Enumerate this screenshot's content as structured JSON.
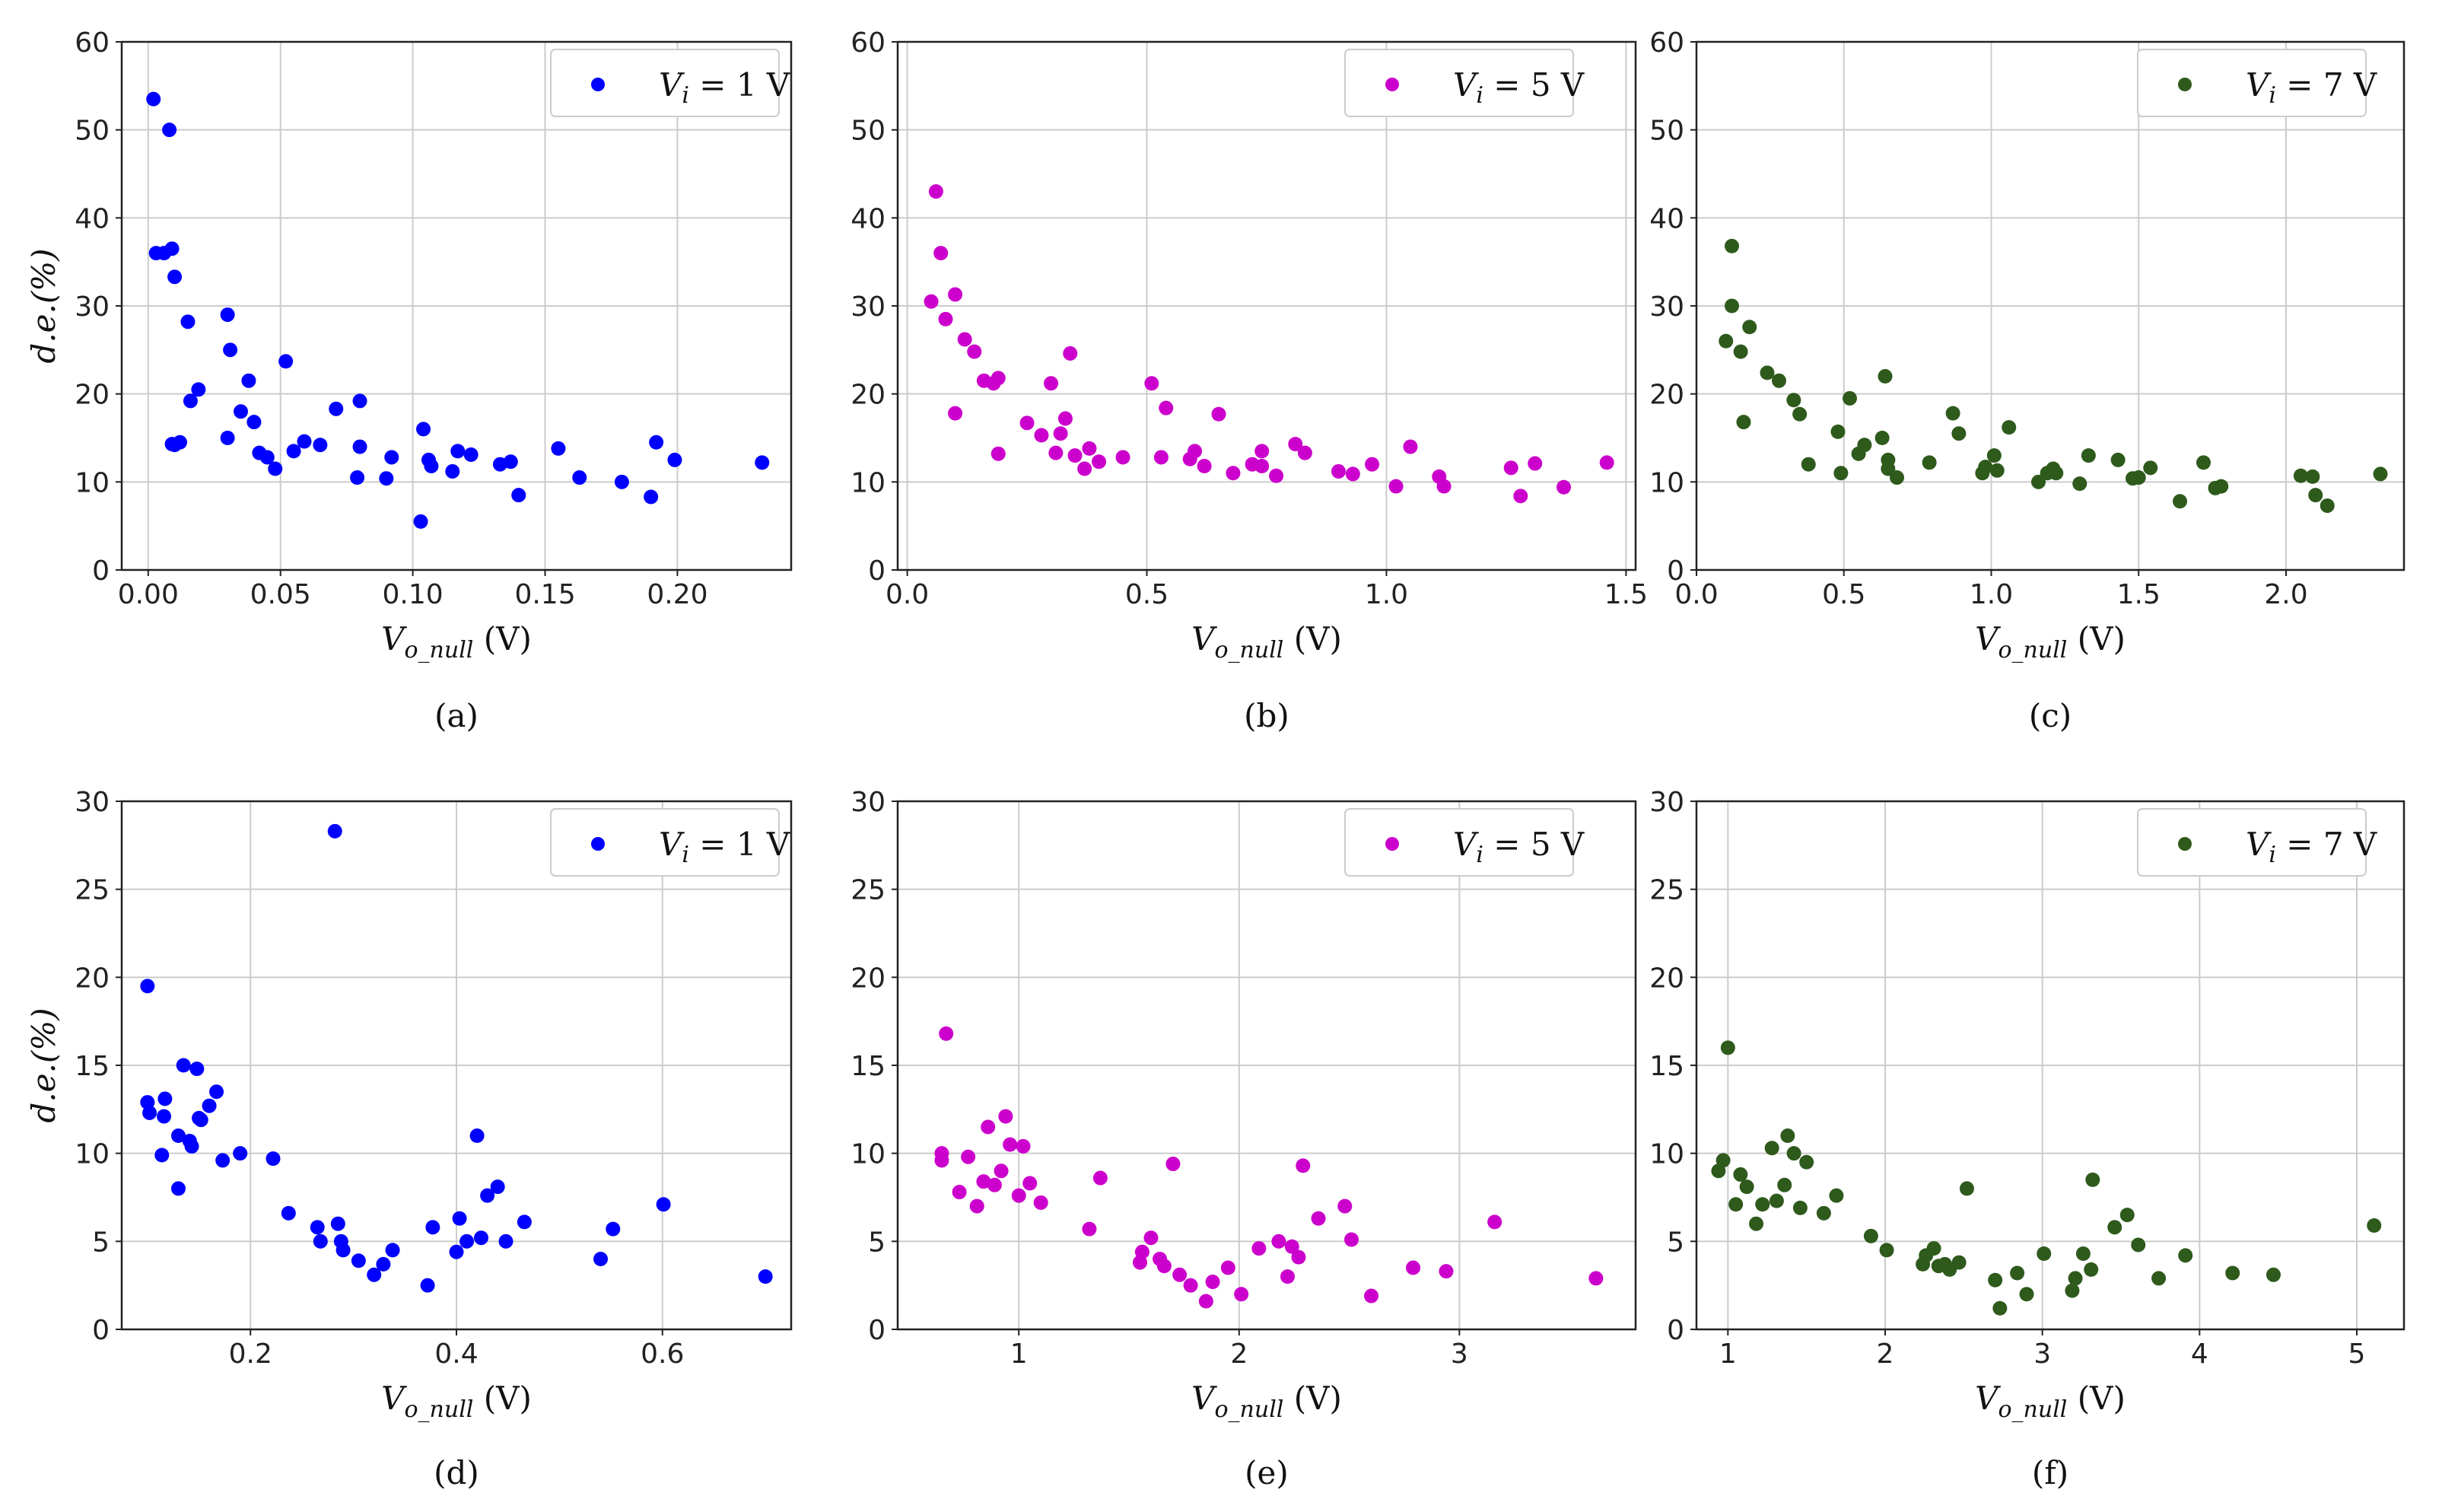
{
  "figure": {
    "ylabel": "d.e.(%)",
    "xlabel": "V",
    "xlabel_sub": "o_null",
    "xlabel_unit": " (V)"
  },
  "chart_data": [
    {
      "type": "scatter",
      "caption": "(a)",
      "color": "#0000ff",
      "legend": {
        "var": "V",
        "sub": "i",
        "value": " = 1 V",
        "position": "top-right"
      },
      "xlim": [
        -0.01,
        0.243
      ],
      "ylim": [
        0,
        60
      ],
      "xticks": [
        0.0,
        0.05,
        0.1,
        0.15,
        0.2
      ],
      "xtick_labels": [
        "0.00",
        "0.05",
        "0.10",
        "0.15",
        "0.20"
      ],
      "yticks": [
        0,
        10,
        20,
        30,
        40,
        50,
        60
      ],
      "ytick_labels": [
        "0",
        "10",
        "20",
        "30",
        "40",
        "50",
        "60"
      ],
      "x": [
        0.002,
        0.003,
        0.006,
        0.008,
        0.009,
        0.01,
        0.01,
        0.009,
        0.012,
        0.015,
        0.016,
        0.019,
        0.03,
        0.031,
        0.03,
        0.035,
        0.038,
        0.04,
        0.042,
        0.045,
        0.048,
        0.052,
        0.055,
        0.059,
        0.065,
        0.071,
        0.079,
        0.08,
        0.08,
        0.09,
        0.092,
        0.103,
        0.104,
        0.106,
        0.107,
        0.115,
        0.117,
        0.122,
        0.133,
        0.137,
        0.14,
        0.155,
        0.163,
        0.179,
        0.19,
        0.192,
        0.199,
        0.232
      ],
      "y": [
        53.5,
        36.0,
        36.0,
        50.0,
        36.5,
        33.3,
        14.2,
        14.3,
        14.5,
        28.2,
        19.2,
        20.5,
        29.0,
        25.0,
        15.0,
        18.0,
        21.5,
        16.8,
        13.3,
        12.8,
        11.5,
        23.7,
        13.5,
        14.6,
        14.2,
        18.3,
        10.5,
        14.0,
        19.2,
        10.4,
        12.8,
        5.5,
        16.0,
        12.5,
        11.8,
        11.2,
        13.5,
        13.1,
        12.0,
        12.3,
        8.5,
        13.8,
        10.5,
        10.0,
        8.3,
        14.5,
        12.5,
        12.2
      ]
    },
    {
      "type": "scatter",
      "caption": "(b)",
      "color": "#cc00cc",
      "legend": {
        "var": "V",
        "sub": "i",
        "value": " = 5 V",
        "position": "top-right"
      },
      "xlim": [
        -0.02,
        1.52
      ],
      "ylim": [
        0,
        60
      ],
      "xticks": [
        0.0,
        0.5,
        1.0,
        1.5
      ],
      "xtick_labels": [
        "0.0",
        "0.5",
        "1.0",
        "1.5"
      ],
      "yticks": [
        0,
        10,
        20,
        30,
        40,
        50,
        60
      ],
      "ytick_labels": [
        "0",
        "10",
        "20",
        "30",
        "40",
        "50",
        "60"
      ],
      "x": [
        0.05,
        0.06,
        0.07,
        0.08,
        0.1,
        0.1,
        0.12,
        0.14,
        0.16,
        0.18,
        0.19,
        0.19,
        0.25,
        0.28,
        0.3,
        0.31,
        0.32,
        0.33,
        0.34,
        0.35,
        0.37,
        0.38,
        0.4,
        0.45,
        0.51,
        0.53,
        0.54,
        0.59,
        0.6,
        0.62,
        0.65,
        0.68,
        0.72,
        0.74,
        0.74,
        0.77,
        0.81,
        0.83,
        0.9,
        0.93,
        0.97,
        1.02,
        1.05,
        1.11,
        1.12,
        1.26,
        1.28,
        1.31,
        1.37,
        1.46
      ],
      "y": [
        30.5,
        43.0,
        36.0,
        28.5,
        31.3,
        17.8,
        26.2,
        24.8,
        21.5,
        21.2,
        13.2,
        21.8,
        16.7,
        15.3,
        21.2,
        13.3,
        15.5,
        17.2,
        24.6,
        13.0,
        11.5,
        13.8,
        12.3,
        12.8,
        21.2,
        12.8,
        18.4,
        12.6,
        13.5,
        11.8,
        17.7,
        11.0,
        12.0,
        13.5,
        11.8,
        10.7,
        14.3,
        13.3,
        11.2,
        10.9,
        12.0,
        9.5,
        14.0,
        10.6,
        9.5,
        11.6,
        8.4,
        12.1,
        9.4,
        12.2
      ]
    },
    {
      "type": "scatter",
      "caption": "(c)",
      "color": "#2e5a1c",
      "legend": {
        "var": "V",
        "sub": "i",
        "value": " = 7 V",
        "position": "top-right"
      },
      "xlim": [
        0.0,
        2.4
      ],
      "ylim": [
        0,
        60
      ],
      "xticks": [
        0.0,
        0.5,
        1.0,
        1.5,
        2.0
      ],
      "xtick_labels": [
        "0.0",
        "0.5",
        "1.0",
        "1.5",
        "2.0"
      ],
      "yticks": [
        0,
        10,
        20,
        30,
        40,
        50,
        60
      ],
      "ytick_labels": [
        "0",
        "10",
        "20",
        "30",
        "40",
        "50",
        "60"
      ],
      "x": [
        0.1,
        0.12,
        0.12,
        0.15,
        0.16,
        0.18,
        0.24,
        0.28,
        0.33,
        0.35,
        0.38,
        0.48,
        0.49,
        0.52,
        0.55,
        0.57,
        0.63,
        0.64,
        0.65,
        0.65,
        0.68,
        0.79,
        0.87,
        0.89,
        0.97,
        0.98,
        1.01,
        1.02,
        1.06,
        1.16,
        1.19,
        1.21,
        1.22,
        1.3,
        1.33,
        1.43,
        1.48,
        1.5,
        1.54,
        1.64,
        1.72,
        1.76,
        1.78,
        2.05,
        2.09,
        2.1,
        2.14,
        2.32
      ],
      "y": [
        26.0,
        36.8,
        30.0,
        24.8,
        16.8,
        27.6,
        22.4,
        21.5,
        19.3,
        17.7,
        12.0,
        15.7,
        11.0,
        19.5,
        13.2,
        14.2,
        15.0,
        22.0,
        11.5,
        12.5,
        10.5,
        12.2,
        17.8,
        15.5,
        11.0,
        11.7,
        13.0,
        11.3,
        16.2,
        10.0,
        11.0,
        11.5,
        11.0,
        9.8,
        13.0,
        12.5,
        10.4,
        10.5,
        11.6,
        7.8,
        12.2,
        9.3,
        9.5,
        10.7,
        10.6,
        8.5,
        7.3,
        10.9
      ]
    },
    {
      "type": "scatter",
      "caption": "(d)",
      "color": "#0000ff",
      "legend": {
        "var": "V",
        "sub": "i",
        "value": " = 1 V",
        "position": "top-right"
      },
      "xlim": [
        0.075,
        0.725
      ],
      "ylim": [
        0,
        30
      ],
      "xticks": [
        0.2,
        0.4,
        0.6
      ],
      "xtick_labels": [
        "0.2",
        "0.4",
        "0.6"
      ],
      "yticks": [
        0,
        5,
        10,
        15,
        20,
        25,
        30
      ],
      "ytick_labels": [
        "0",
        "5",
        "10",
        "15",
        "20",
        "25",
        "30"
      ],
      "x": [
        0.1,
        0.1,
        0.102,
        0.114,
        0.116,
        0.117,
        0.13,
        0.13,
        0.135,
        0.141,
        0.143,
        0.148,
        0.15,
        0.152,
        0.16,
        0.167,
        0.173,
        0.19,
        0.222,
        0.237,
        0.265,
        0.268,
        0.282,
        0.285,
        0.288,
        0.29,
        0.305,
        0.32,
        0.329,
        0.338,
        0.372,
        0.377,
        0.4,
        0.403,
        0.41,
        0.42,
        0.424,
        0.43,
        0.44,
        0.448,
        0.466,
        0.54,
        0.552,
        0.601,
        0.7
      ],
      "y": [
        19.5,
        12.9,
        12.3,
        9.9,
        12.1,
        13.1,
        8.0,
        11.0,
        15.0,
        10.7,
        10.4,
        14.8,
        12.0,
        11.9,
        12.7,
        13.5,
        9.6,
        10.0,
        9.7,
        6.6,
        5.8,
        5.0,
        28.3,
        6.0,
        5.0,
        4.5,
        3.9,
        3.1,
        3.7,
        4.5,
        2.5,
        5.8,
        4.4,
        6.3,
        5.0,
        11.0,
        5.2,
        7.6,
        8.1,
        5.0,
        6.1,
        4.0,
        5.7,
        7.1,
        3.0
      ]
    },
    {
      "type": "scatter",
      "caption": "(e)",
      "color": "#cc00cc",
      "legend": {
        "var": "V",
        "sub": "i",
        "value": " = 5 V",
        "position": "top-right"
      },
      "xlim": [
        0.45,
        3.8
      ],
      "ylim": [
        0,
        30
      ],
      "xticks": [
        1,
        2,
        3
      ],
      "xtick_labels": [
        "1",
        "2",
        "3"
      ],
      "yticks": [
        0,
        5,
        10,
        15,
        20,
        25,
        30
      ],
      "ytick_labels": [
        "0",
        "5",
        "10",
        "15",
        "20",
        "25",
        "30"
      ],
      "x": [
        0.65,
        0.65,
        0.67,
        0.73,
        0.77,
        0.81,
        0.84,
        0.86,
        0.89,
        0.92,
        0.94,
        0.96,
        1.0,
        1.02,
        1.05,
        1.1,
        1.32,
        1.37,
        1.55,
        1.56,
        1.6,
        1.64,
        1.66,
        1.7,
        1.73,
        1.78,
        1.85,
        1.88,
        1.95,
        2.01,
        2.09,
        2.18,
        2.22,
        2.24,
        2.27,
        2.29,
        2.36,
        2.48,
        2.51,
        2.6,
        2.79,
        2.94,
        3.16,
        3.62
      ],
      "y": [
        9.6,
        10.0,
        16.8,
        7.8,
        9.8,
        7.0,
        8.4,
        11.5,
        8.2,
        9.0,
        12.1,
        10.5,
        7.6,
        10.4,
        8.3,
        7.2,
        5.7,
        8.6,
        3.8,
        4.4,
        5.2,
        4.0,
        3.6,
        9.4,
        3.1,
        2.5,
        1.6,
        2.7,
        3.5,
        2.0,
        4.6,
        5.0,
        3.0,
        4.7,
        4.1,
        9.3,
        6.3,
        7.0,
        5.1,
        1.9,
        3.5,
        3.3,
        6.1,
        2.9
      ]
    },
    {
      "type": "scatter",
      "caption": "(f)",
      "color": "#2e5a1c",
      "legend": {
        "var": "V",
        "sub": "i",
        "value": " = 7 V",
        "position": "top-right"
      },
      "xlim": [
        0.8,
        5.3
      ],
      "ylim": [
        0,
        30
      ],
      "xticks": [
        1,
        2,
        3,
        4,
        5
      ],
      "xtick_labels": [
        "1",
        "2",
        "3",
        "4",
        "5"
      ],
      "yticks": [
        0,
        5,
        10,
        15,
        20,
        25,
        30
      ],
      "ytick_labels": [
        "0",
        "5",
        "10",
        "15",
        "20",
        "25",
        "30"
      ],
      "x": [
        0.94,
        0.97,
        1.0,
        1.05,
        1.08,
        1.12,
        1.18,
        1.22,
        1.28,
        1.31,
        1.36,
        1.38,
        1.42,
        1.46,
        1.5,
        1.61,
        1.69,
        1.91,
        2.01,
        2.24,
        2.26,
        2.31,
        2.34,
        2.38,
        2.41,
        2.47,
        2.52,
        2.7,
        2.73,
        2.84,
        2.9,
        3.01,
        3.19,
        3.21,
        3.26,
        3.31,
        3.32,
        3.46,
        3.54,
        3.61,
        3.74,
        3.91,
        4.21,
        4.47,
        5.11
      ],
      "y": [
        9.0,
        9.6,
        16.0,
        7.1,
        8.8,
        8.1,
        6.0,
        7.1,
        10.3,
        7.3,
        8.2,
        11.0,
        10.0,
        6.9,
        9.5,
        6.6,
        7.6,
        5.3,
        4.5,
        3.7,
        4.2,
        4.6,
        3.6,
        3.7,
        3.4,
        3.8,
        8.0,
        2.8,
        1.2,
        3.2,
        2.0,
        4.3,
        2.2,
        2.9,
        4.3,
        3.4,
        8.5,
        5.8,
        6.5,
        4.8,
        2.9,
        4.2,
        3.2,
        3.1,
        5.9
      ]
    }
  ]
}
